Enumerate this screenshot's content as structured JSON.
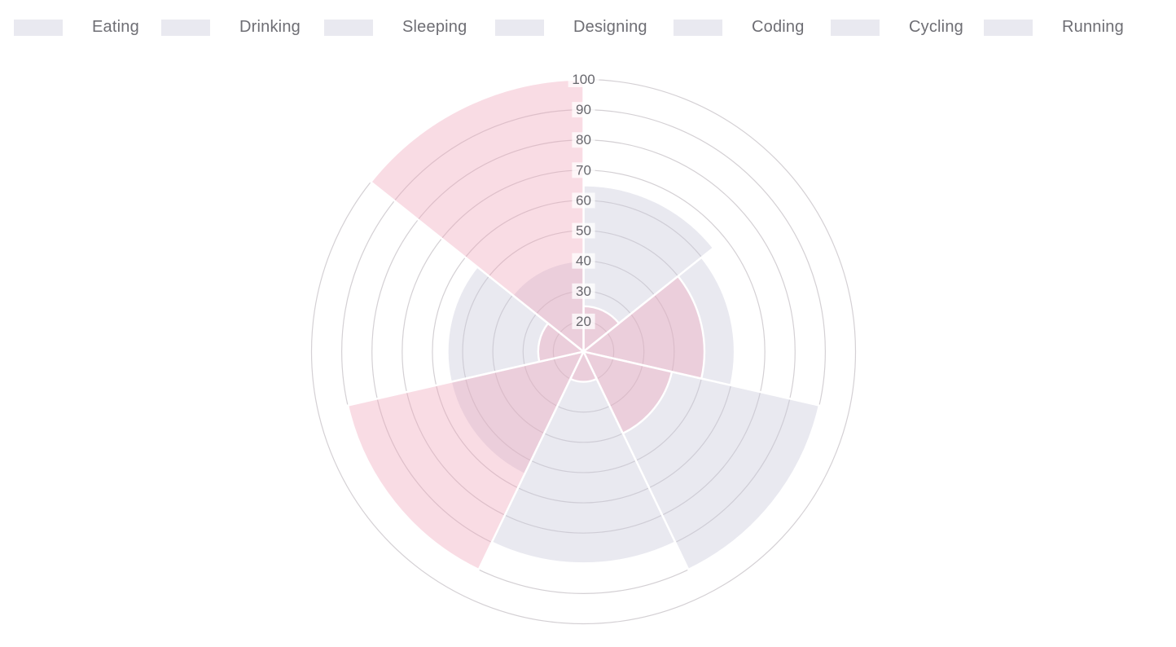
{
  "legend": {
    "position": "top",
    "swatch_color": "#e9e9f0",
    "text_color": "#6e6e74",
    "items": [
      {
        "label": "Eating"
      },
      {
        "label": "Drinking"
      },
      {
        "label": "Sleeping"
      },
      {
        "label": "Designing"
      },
      {
        "label": "Coding"
      },
      {
        "label": "Cycling"
      },
      {
        "label": "Running"
      }
    ]
  },
  "chart_data": {
    "type": "polar_area",
    "title": "",
    "categories": [
      "Eating",
      "Drinking",
      "Sleeping",
      "Designing",
      "Coding",
      "Cycling",
      "Running"
    ],
    "series": [
      {
        "name": "gray",
        "color": "rgba(200,200,218,0.40)",
        "values": [
          65,
          60,
          90,
          80,
          55,
          55,
          40
        ]
      },
      {
        "name": "pink",
        "color": "rgba(238,163,185,0.38)",
        "values": [
          25,
          50,
          40,
          20,
          90,
          25,
          100
        ]
      }
    ],
    "scale": {
      "min": 10,
      "max": 100,
      "step": 10,
      "tick_labels": [
        "20",
        "30",
        "40",
        "50",
        "60",
        "70",
        "80",
        "90",
        "100"
      ]
    },
    "start_angle_deg": 0,
    "slice_count": 7,
    "grid": true,
    "grid_color": "#d4d0d4",
    "slice_border_color": "#ffffff",
    "tick_text_color": "#67676d",
    "tick_backdrop_color": "rgba(255,255,255,0.75)",
    "legend_position": "top"
  }
}
